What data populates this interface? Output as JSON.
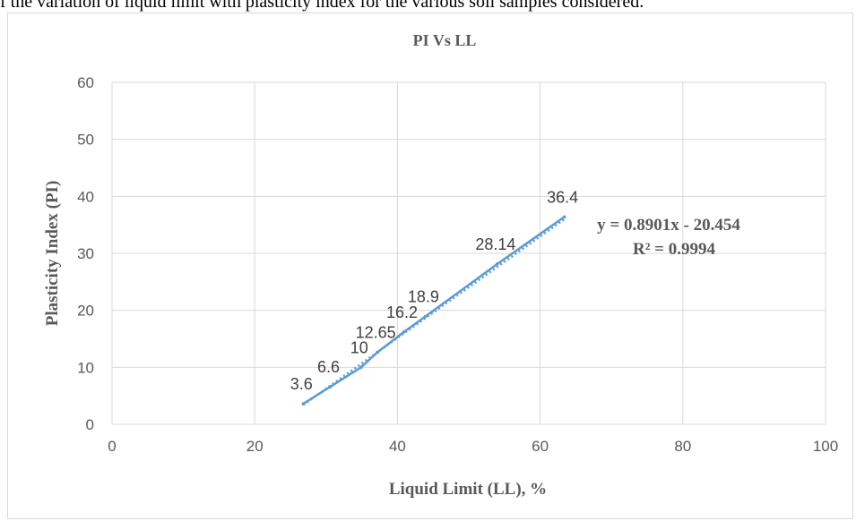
{
  "caption": "f the variation of liquid limit with plasticity index for the various soil samples considered.",
  "chart_data": {
    "type": "scatter",
    "title": "PI Vs LL",
    "xlabel": "Liquid Limit (LL), %",
    "ylabel": "Plasticity Index (PI)",
    "xlim": [
      0,
      100
    ],
    "ylim": [
      0,
      60
    ],
    "xticks": [
      "0",
      "20",
      "40",
      "60",
      "80",
      "100"
    ],
    "yticks": [
      "0",
      "10",
      "20",
      "30",
      "40",
      "50",
      "60"
    ],
    "grid": true,
    "colors": {
      "series": "#5b9bd5",
      "grid": "#d9d9d9",
      "text": "#595959"
    },
    "series": [
      {
        "x": [
          26.8,
          30.6,
          34.9,
          37.2,
          40.9,
          43.9,
          54.0,
          63.4
        ],
        "y": [
          3.6,
          6.6,
          10,
          12.65,
          16.2,
          18.9,
          28.14,
          36.4
        ],
        "labels": [
          "3.6",
          "6.6",
          "10",
          "12.65",
          "16.2",
          "18.9",
          "28.14",
          "36.4"
        ]
      }
    ],
    "trendline": {
      "type": "linear",
      "equation": "y = 0.8901x - 20.454",
      "r2": "R² = 0.9994"
    }
  }
}
